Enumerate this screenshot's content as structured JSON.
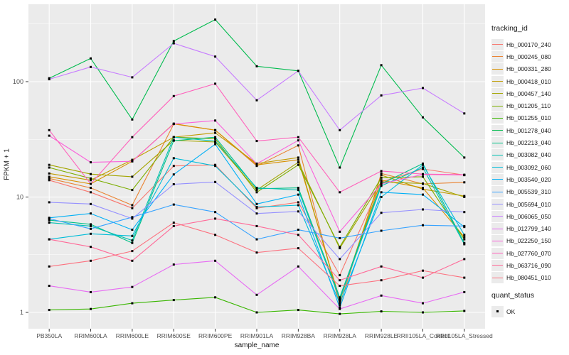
{
  "panel": {
    "bg": "#ebebeb",
    "grid_color": "#ffffff",
    "axis_text_color": "#4d4d4d",
    "tick_color": "#333333",
    "marker_color": "#000000",
    "legend_key_bg": "#ebebeb"
  },
  "chart_data": {
    "type": "line",
    "title": "",
    "xlabel": "sample_name",
    "ylabel": "FPKM + 1",
    "y_scale": "log10",
    "y_ticks": [
      1,
      10,
      100
    ],
    "y_minor_ticks": [
      3.162,
      31.62,
      316.2
    ],
    "ylim": [
      0.72,
      470
    ],
    "grid": true,
    "legend_title": "tracking_id",
    "legend_position": "right",
    "marker": "square",
    "quant_status": {
      "title": "quant_status",
      "value": "OK"
    },
    "x_categories": [
      "PB350LA",
      "RRIM600LA",
      "RRIM600LE",
      "RRIM600SE",
      "RRIM600PE",
      "RRIM901LA",
      "RRIM928BA",
      "RRIM928LA",
      "RRIM928LE",
      "RRII105LA_Control",
      "RRII105LA_Stressed"
    ],
    "series": [
      {
        "name": "Hb_000170_240",
        "color": "#F8766D",
        "values": [
          14,
          11,
          8,
          18.6,
          19,
          8,
          9,
          2.1,
          13.5,
          17.5,
          15.5
        ]
      },
      {
        "name": "Hb_000245_080",
        "color": "#EA8331",
        "values": [
          14.5,
          12,
          8.5,
          43,
          38,
          18.6,
          28,
          1.15,
          16,
          13,
          13.4
        ]
      },
      {
        "name": "Hb_000331_280",
        "color": "#D89000",
        "values": [
          15,
          13,
          20.4,
          43.3,
          38,
          19,
          21,
          1.3,
          14,
          12,
          4.5
        ]
      },
      {
        "name": "Hb_000418_010",
        "color": "#C09B00",
        "values": [
          16,
          14,
          21,
          33,
          36,
          19.5,
          22,
          1.25,
          15.5,
          11.7,
          10.2
        ]
      },
      {
        "name": "Hb_000457_140",
        "color": "#A3A500",
        "values": [
          19,
          15.8,
          15,
          31,
          30,
          11.5,
          20,
          3.6,
          13.5,
          13.1,
          10
        ]
      },
      {
        "name": "Hb_001205_110",
        "color": "#7CAE00",
        "values": [
          18,
          14.5,
          11.5,
          33,
          32,
          11,
          19,
          3.7,
          14.7,
          15,
          4.3
        ]
      },
      {
        "name": "Hb_001255_010",
        "color": "#39B600",
        "values": [
          1.05,
          1.07,
          1.2,
          1.28,
          1.35,
          1,
          1.05,
          0.97,
          1.02,
          1,
          1.03
        ]
      },
      {
        "name": "Hb_001278_040",
        "color": "#00BB4E",
        "values": [
          107,
          159,
          47,
          225,
          345,
          136,
          124,
          18,
          139,
          49,
          22
        ]
      },
      {
        "name": "Hb_002213_040",
        "color": "#00C087",
        "values": [
          6.3,
          5.8,
          4,
          30.8,
          33,
          11.8,
          12,
          1.35,
          13,
          19.5,
          4
        ]
      },
      {
        "name": "Hb_003082_040",
        "color": "#00C0B2",
        "values": [
          6,
          5.6,
          4.2,
          33,
          30.5,
          12,
          11.5,
          1.3,
          12.5,
          18,
          3.9
        ]
      },
      {
        "name": "Hb_003092_060",
        "color": "#00BCD8",
        "values": [
          4.3,
          4.8,
          4.6,
          21.7,
          18.6,
          8.2,
          8.5,
          1.2,
          10,
          19,
          4.7
        ]
      },
      {
        "name": "Hb_003540_020",
        "color": "#00B0F6",
        "values": [
          6.6,
          7.2,
          5.2,
          15.7,
          28.7,
          8.7,
          10.5,
          1.1,
          11,
          10.5,
          5.5
        ]
      },
      {
        "name": "Hb_005539_310",
        "color": "#35A2FF",
        "values": [
          6.5,
          5.3,
          6.7,
          8.6,
          7.4,
          4.3,
          5.2,
          4.4,
          5.1,
          5.7,
          5.6
        ]
      },
      {
        "name": "Hb_005694_010",
        "color": "#9590FF",
        "values": [
          9,
          8.7,
          6.5,
          12.9,
          13.5,
          7.2,
          7.5,
          2.9,
          7.3,
          7.8,
          7.4
        ]
      },
      {
        "name": "Hb_006065_050",
        "color": "#C77CFF",
        "values": [
          105,
          134,
          109,
          215,
          165,
          69,
          124,
          38,
          76,
          88,
          53
        ]
      },
      {
        "name": "Hb_012799_140",
        "color": "#E76BF3",
        "values": [
          1.7,
          1.5,
          1.66,
          2.6,
          2.8,
          1.42,
          2.5,
          1.07,
          1.4,
          1.2,
          1.5
        ]
      },
      {
        "name": "Hb_022250_150",
        "color": "#FA62DB",
        "values": [
          34,
          20,
          20.4,
          43,
          46,
          19.4,
          31,
          5,
          13,
          15.7,
          15.5
        ]
      },
      {
        "name": "Hb_027760_070",
        "color": "#FF62BC",
        "values": [
          38,
          13,
          33,
          75,
          96,
          30.6,
          33,
          11,
          16.8,
          15.8,
          15.6
        ]
      },
      {
        "name": "Hb_063716_090",
        "color": "#FF6A98",
        "values": [
          4.3,
          3.7,
          2.8,
          5.6,
          6.5,
          5.6,
          4.7,
          1.9,
          2.5,
          2,
          2.9
        ]
      },
      {
        "name": "Hb_080451_010",
        "color": "#FC717F",
        "values": [
          2.5,
          2.8,
          3.4,
          6,
          4.7,
          3.3,
          3.6,
          1.7,
          1.9,
          2.3,
          2
        ]
      }
    ]
  }
}
